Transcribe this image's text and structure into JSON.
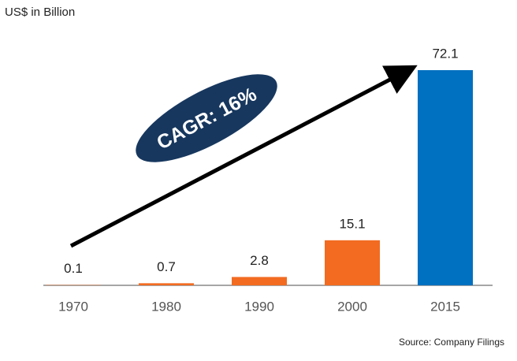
{
  "chart_data": {
    "type": "bar",
    "subtitle": "US$ in Billion",
    "categories": [
      "1970",
      "1980",
      "1990",
      "2000",
      "2015"
    ],
    "values": [
      0.1,
      0.7,
      2.8,
      15.1,
      72.1
    ],
    "colors": [
      "#f26b21",
      "#f26b21",
      "#f26b21",
      "#f26b21",
      "#0070c0"
    ],
    "annotation": "CAGR: 16%",
    "source": "Source: Company Filings"
  }
}
